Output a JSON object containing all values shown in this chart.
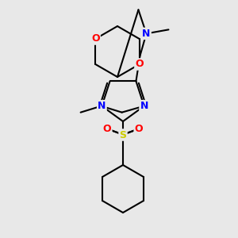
{
  "bg_color": "#e8e8e8",
  "atom_colors": {
    "C": "#000000",
    "N": "#0000ff",
    "O": "#ff0000",
    "S": "#cccc00"
  },
  "bond_color": "#000000",
  "bond_width": 1.5,
  "figsize": [
    3.0,
    3.0
  ],
  "dpi": 100
}
